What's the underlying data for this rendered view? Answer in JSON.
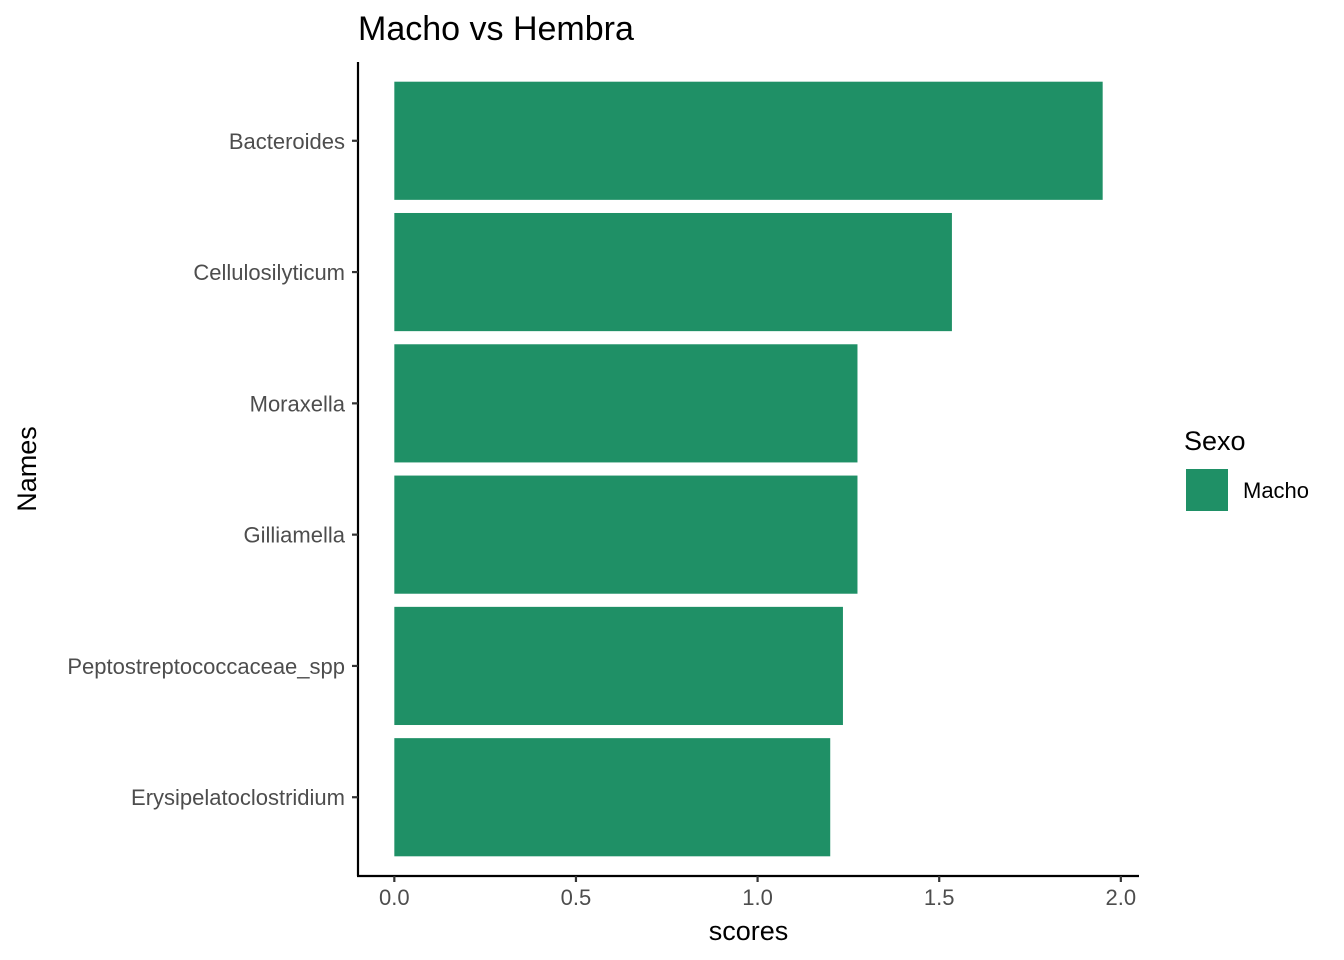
{
  "chart_data": {
    "type": "bar",
    "orientation": "horizontal",
    "title": "Macho vs Hembra",
    "xlabel": "scores",
    "ylabel": "Names",
    "categories": [
      "Bacteroides",
      "Cellulosilyticum",
      "Moraxella",
      "Gilliamella",
      "Peptostreptococcaceae_spp",
      "Erysipelatoclostridium"
    ],
    "series": [
      {
        "name": "Macho",
        "color": "#1f9066",
        "values": [
          1.95,
          1.535,
          1.275,
          1.275,
          1.235,
          1.2
        ]
      }
    ],
    "xlim": [
      -0.1,
      2.05
    ],
    "xticks": [
      0.0,
      0.5,
      1.0,
      1.5,
      2.0
    ],
    "xtick_labels": [
      "0.0",
      "0.5",
      "1.0",
      "1.5",
      "2.0"
    ],
    "grid": false,
    "legend": {
      "title": "Sexo",
      "placement": "right",
      "entries": [
        "Macho"
      ]
    }
  }
}
